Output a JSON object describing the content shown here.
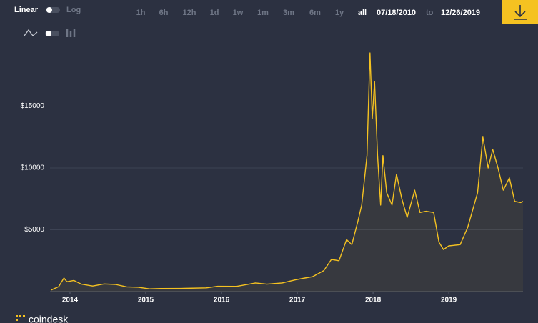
{
  "controls": {
    "scale_options": [
      "Linear",
      "Log"
    ],
    "ranges": [
      "1h",
      "6h",
      "12h",
      "1d",
      "1w",
      "1m",
      "3m",
      "6m",
      "1y",
      "all"
    ],
    "date_from": "07/18/2010",
    "date_to_label": "to",
    "date_to": "12/26/2019"
  },
  "brand": "coindesk",
  "chart_data": {
    "type": "line",
    "color": "#f5c221",
    "grid": true,
    "x": [
      2013.75,
      2013.85,
      2013.92,
      2013.96,
      2014.05,
      2014.15,
      2014.3,
      2014.45,
      2014.6,
      2014.75,
      2014.9,
      2015.05,
      2015.2,
      2015.5,
      2015.8,
      2015.95,
      2016.2,
      2016.45,
      2016.6,
      2016.8,
      2016.98,
      2017.1,
      2017.2,
      2017.35,
      2017.45,
      2017.55,
      2017.65,
      2017.72,
      2017.8,
      2017.85,
      2017.92,
      2017.96,
      2017.99,
      2018.02,
      2018.06,
      2018.1,
      2018.13,
      2018.18,
      2018.25,
      2018.31,
      2018.38,
      2018.45,
      2018.55,
      2018.62,
      2018.7,
      2018.8,
      2018.87,
      2018.93,
      2019.0,
      2019.15,
      2019.25,
      2019.38,
      2019.45,
      2019.52,
      2019.58,
      2019.65,
      2019.72,
      2019.8,
      2019.87,
      2019.95,
      2019.98
    ],
    "values": [
      130,
      400,
      1100,
      800,
      900,
      600,
      450,
      620,
      580,
      380,
      350,
      220,
      250,
      260,
      300,
      430,
      420,
      700,
      600,
      700,
      960,
      1100,
      1200,
      1700,
      2600,
      2500,
      4200,
      3800,
      5700,
      7000,
      11000,
      19300,
      14000,
      17000,
      11000,
      7000,
      11000,
      8000,
      7000,
      9500,
      7500,
      6000,
      8200,
      6400,
      6500,
      6400,
      4000,
      3400,
      3700,
      3800,
      5200,
      8000,
      12500,
      10000,
      11500,
      10000,
      8200,
      9200,
      7300,
      7200,
      7300
    ],
    "xlim": [
      2013.736,
      2019.98
    ],
    "ylim": [
      0,
      20000
    ],
    "xticks": [
      2014,
      2015,
      2016,
      2017,
      2018,
      2019
    ],
    "yticks": [
      {
        "value": 5000,
        "label": "$5000"
      },
      {
        "value": 10000,
        "label": "$10000"
      },
      {
        "value": 15000,
        "label": "$15000"
      }
    ]
  }
}
